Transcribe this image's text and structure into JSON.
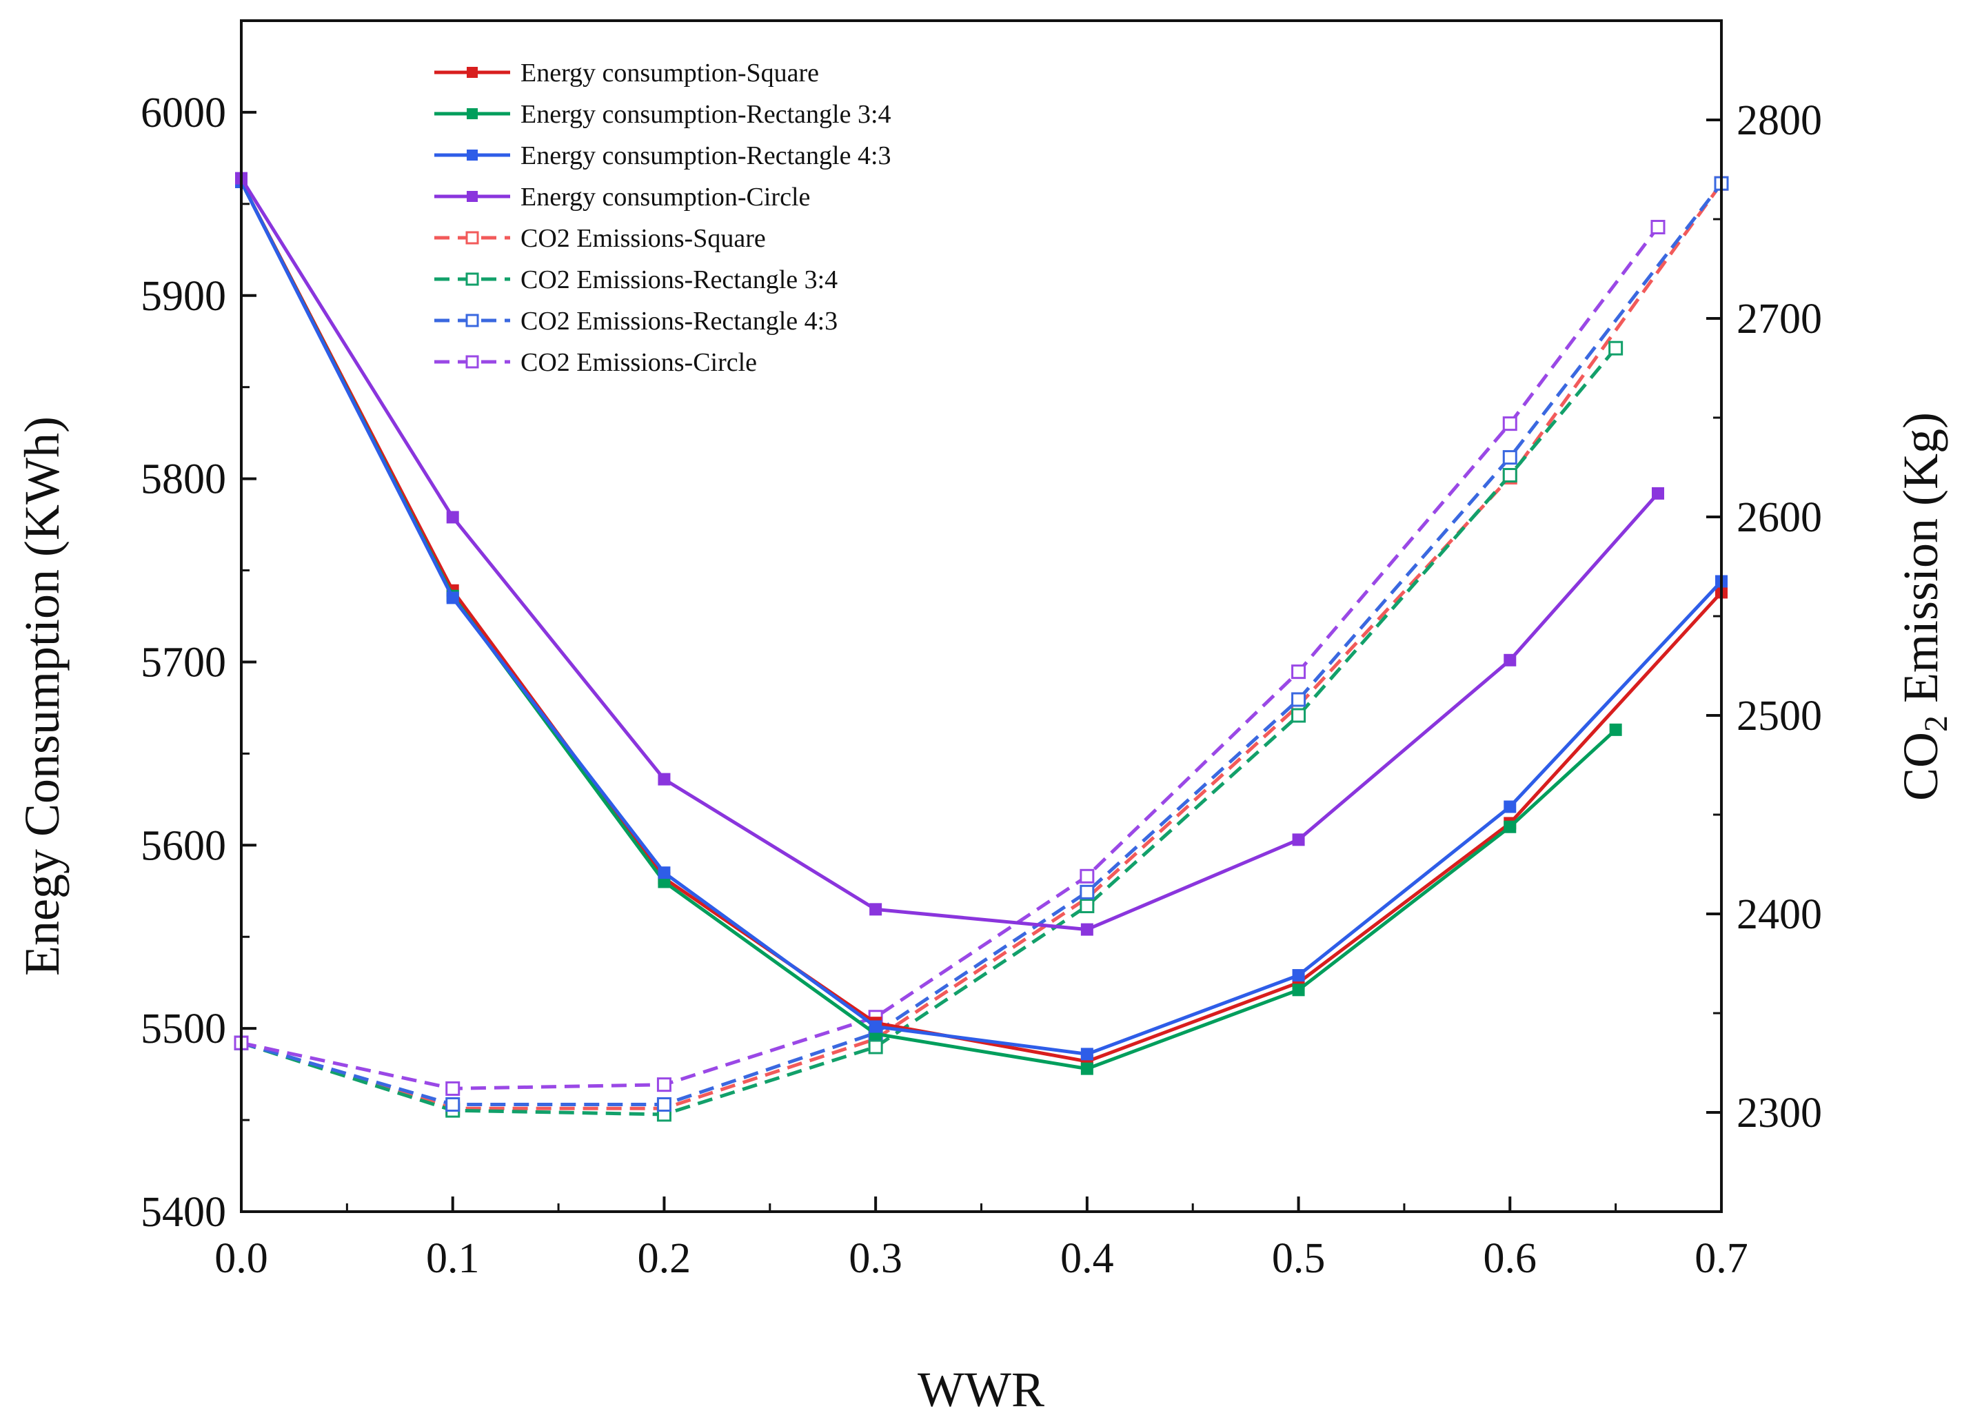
{
  "chart_data": {
    "type": "line",
    "x_axis": {
      "label": "WWR",
      "min": 0,
      "max": 0.7,
      "ticks": [
        "0.0",
        "0.1",
        "0.2",
        "0.3",
        "0.4",
        "0.5",
        "0.6",
        "0.7"
      ]
    },
    "y_axis_left": {
      "label": "Enegy Consumption (KWh)",
      "min": 5400,
      "max": 6050,
      "ticks": [
        "5400",
        "5500",
        "5600",
        "5700",
        "5800",
        "5900",
        "6000"
      ]
    },
    "y_axis_right": {
      "label_main": "CO",
      "label_sub": "2",
      "label_rest": " Emission (Kg)",
      "min": 2250,
      "max": 2850,
      "ticks": [
        "2300",
        "2400",
        "2500",
        "2600",
        "2700",
        "2800"
      ]
    },
    "series": [
      {
        "name": "Energy consumption-Square",
        "axis": "left",
        "style": "solid",
        "marker": "filled",
        "color": "#d81e1e",
        "x": [
          0,
          0.1,
          0.2,
          0.3,
          0.4,
          0.5,
          0.6,
          0.7
        ],
        "y": [
          5962,
          5739,
          5582,
          5503,
          5482,
          5525,
          5612,
          5738
        ]
      },
      {
        "name": "Energy consumption-Rectangle 3:4",
        "axis": "left",
        "style": "solid",
        "marker": "filled",
        "color": "#009e5c",
        "x": [
          0,
          0.1,
          0.2,
          0.3,
          0.4,
          0.5,
          0.6,
          0.65
        ],
        "y": [
          5962,
          5736,
          5580,
          5497,
          5478,
          5521,
          5610,
          5663
        ]
      },
      {
        "name": "Energy consumption-Rectangle 4:3",
        "axis": "left",
        "style": "solid",
        "marker": "filled",
        "color": "#2e5de8",
        "x": [
          0,
          0.1,
          0.2,
          0.3,
          0.4,
          0.5,
          0.6,
          0.7
        ],
        "y": [
          5962,
          5735,
          5585,
          5501,
          5486,
          5529,
          5621,
          5744
        ]
      },
      {
        "name": "Energy consumption-Circle",
        "axis": "left",
        "style": "solid",
        "marker": "filled",
        "color": "#8a35dd",
        "x": [
          0,
          0.1,
          0.2,
          0.3,
          0.4,
          0.5,
          0.6,
          0.67
        ],
        "y": [
          5964,
          5779,
          5636,
          5565,
          5554,
          5603,
          5701,
          5792
        ]
      },
      {
        "name": "CO2 Emissions-Square",
        "axis": "right",
        "style": "dashed",
        "marker": "hollow",
        "color": "#f25a5a",
        "x": [
          0,
          0.1,
          0.2,
          0.3,
          0.4,
          0.5,
          0.6,
          0.7
        ],
        "y": [
          2335,
          2302,
          2302,
          2337,
          2408,
          2505,
          2620,
          2768
        ]
      },
      {
        "name": "CO2 Emissions-Rectangle 3:4",
        "axis": "right",
        "style": "dashed",
        "marker": "hollow",
        "color": "#12a06a",
        "x": [
          0,
          0.1,
          0.2,
          0.3,
          0.4,
          0.5,
          0.6,
          0.65
        ],
        "y": [
          2335,
          2301,
          2299,
          2333,
          2404,
          2500,
          2621,
          2685
        ]
      },
      {
        "name": "CO2 Emissions-Rectangle 4:3",
        "axis": "right",
        "style": "dashed",
        "marker": "hollow",
        "color": "#3a68e0",
        "x": [
          0,
          0.1,
          0.2,
          0.3,
          0.4,
          0.5,
          0.6,
          0.7
        ],
        "y": [
          2335,
          2304,
          2304,
          2340,
          2411,
          2508,
          2630,
          2768
        ]
      },
      {
        "name": "CO2 Emissions-Circle",
        "axis": "right",
        "style": "dashed",
        "marker": "hollow",
        "color": "#9a48e6",
        "x": [
          0,
          0.1,
          0.2,
          0.3,
          0.4,
          0.5,
          0.6,
          0.67
        ],
        "y": [
          2335,
          2312,
          2314,
          2348,
          2419,
          2522,
          2647,
          2746
        ]
      }
    ],
    "legend_position": "top-left inside plot"
  }
}
